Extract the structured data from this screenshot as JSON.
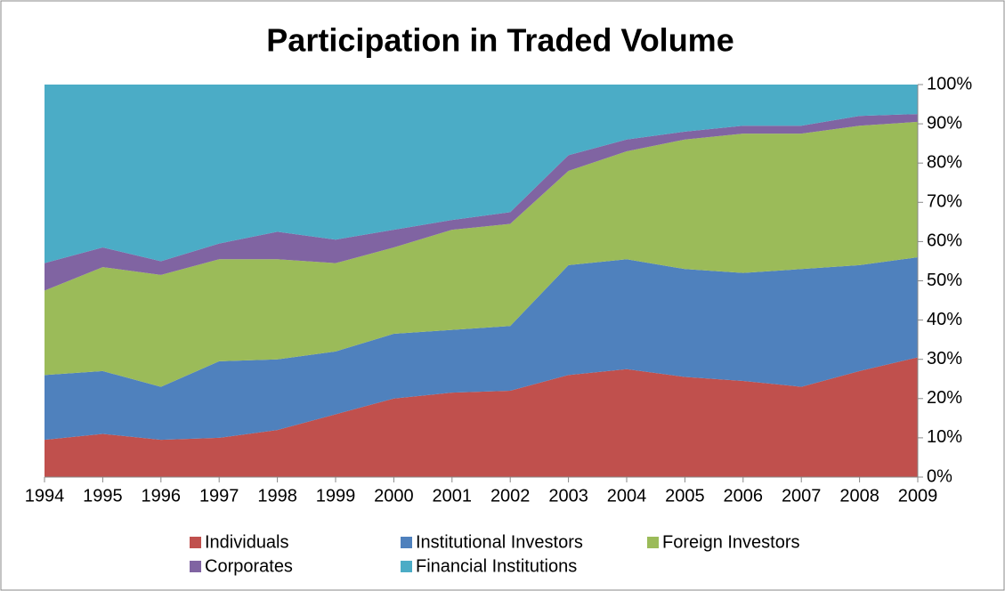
{
  "chart_data": {
    "type": "stacked_area",
    "title": "Participation in Traded Volume",
    "categories": [
      "1994",
      "1995",
      "1996",
      "1997",
      "1998",
      "1999",
      "2000",
      "2001",
      "2002",
      "2003",
      "2004",
      "2005",
      "2006",
      "2007",
      "2008",
      "2009"
    ],
    "series": [
      {
        "name": "Individuals",
        "color": "#c0504d",
        "values": [
          9.5,
          11,
          9.5,
          10,
          12,
          16,
          20,
          21.5,
          22,
          26,
          27.5,
          25.5,
          24.5,
          23,
          27,
          30.5
        ]
      },
      {
        "name": "Institutional Investors",
        "color": "#4f81bd",
        "values": [
          16.5,
          16,
          13.5,
          19.5,
          18,
          16,
          16.5,
          16,
          16.5,
          28,
          28,
          27.5,
          27.5,
          30,
          27,
          25.5
        ]
      },
      {
        "name": "Foreign Investors",
        "color": "#9bbb59",
        "values": [
          21.5,
          26.5,
          28.5,
          26,
          25.5,
          22.5,
          22,
          25.5,
          26,
          24,
          27.5,
          33,
          35.5,
          34.5,
          35.5,
          34.5
        ]
      },
      {
        "name": "Corporates",
        "color": "#8064a2",
        "values": [
          7,
          5,
          3.5,
          4,
          7,
          6,
          4.5,
          2.5,
          3,
          4,
          3,
          2,
          2,
          2,
          2.5,
          2
        ]
      },
      {
        "name": "Financial Institutions",
        "color": "#4bacc6",
        "values": [
          45.5,
          41.5,
          45,
          40.5,
          37.5,
          39.5,
          37,
          34.5,
          32.5,
          18,
          14,
          12,
          10.5,
          10.5,
          8,
          7.5
        ]
      }
    ],
    "ylim": [
      0,
      100
    ],
    "yticks": [
      {
        "value": 0,
        "label": "0%"
      },
      {
        "value": 10,
        "label": "10%"
      },
      {
        "value": 20,
        "label": "20%"
      },
      {
        "value": 30,
        "label": "30%"
      },
      {
        "value": 40,
        "label": "40%"
      },
      {
        "value": 50,
        "label": "50%"
      },
      {
        "value": 60,
        "label": "60%"
      },
      {
        "value": 70,
        "label": "70%"
      },
      {
        "value": 80,
        "label": "80%"
      },
      {
        "value": 90,
        "label": "90%"
      },
      {
        "value": 100,
        "label": "100%"
      }
    ],
    "legend": "bottom"
  }
}
